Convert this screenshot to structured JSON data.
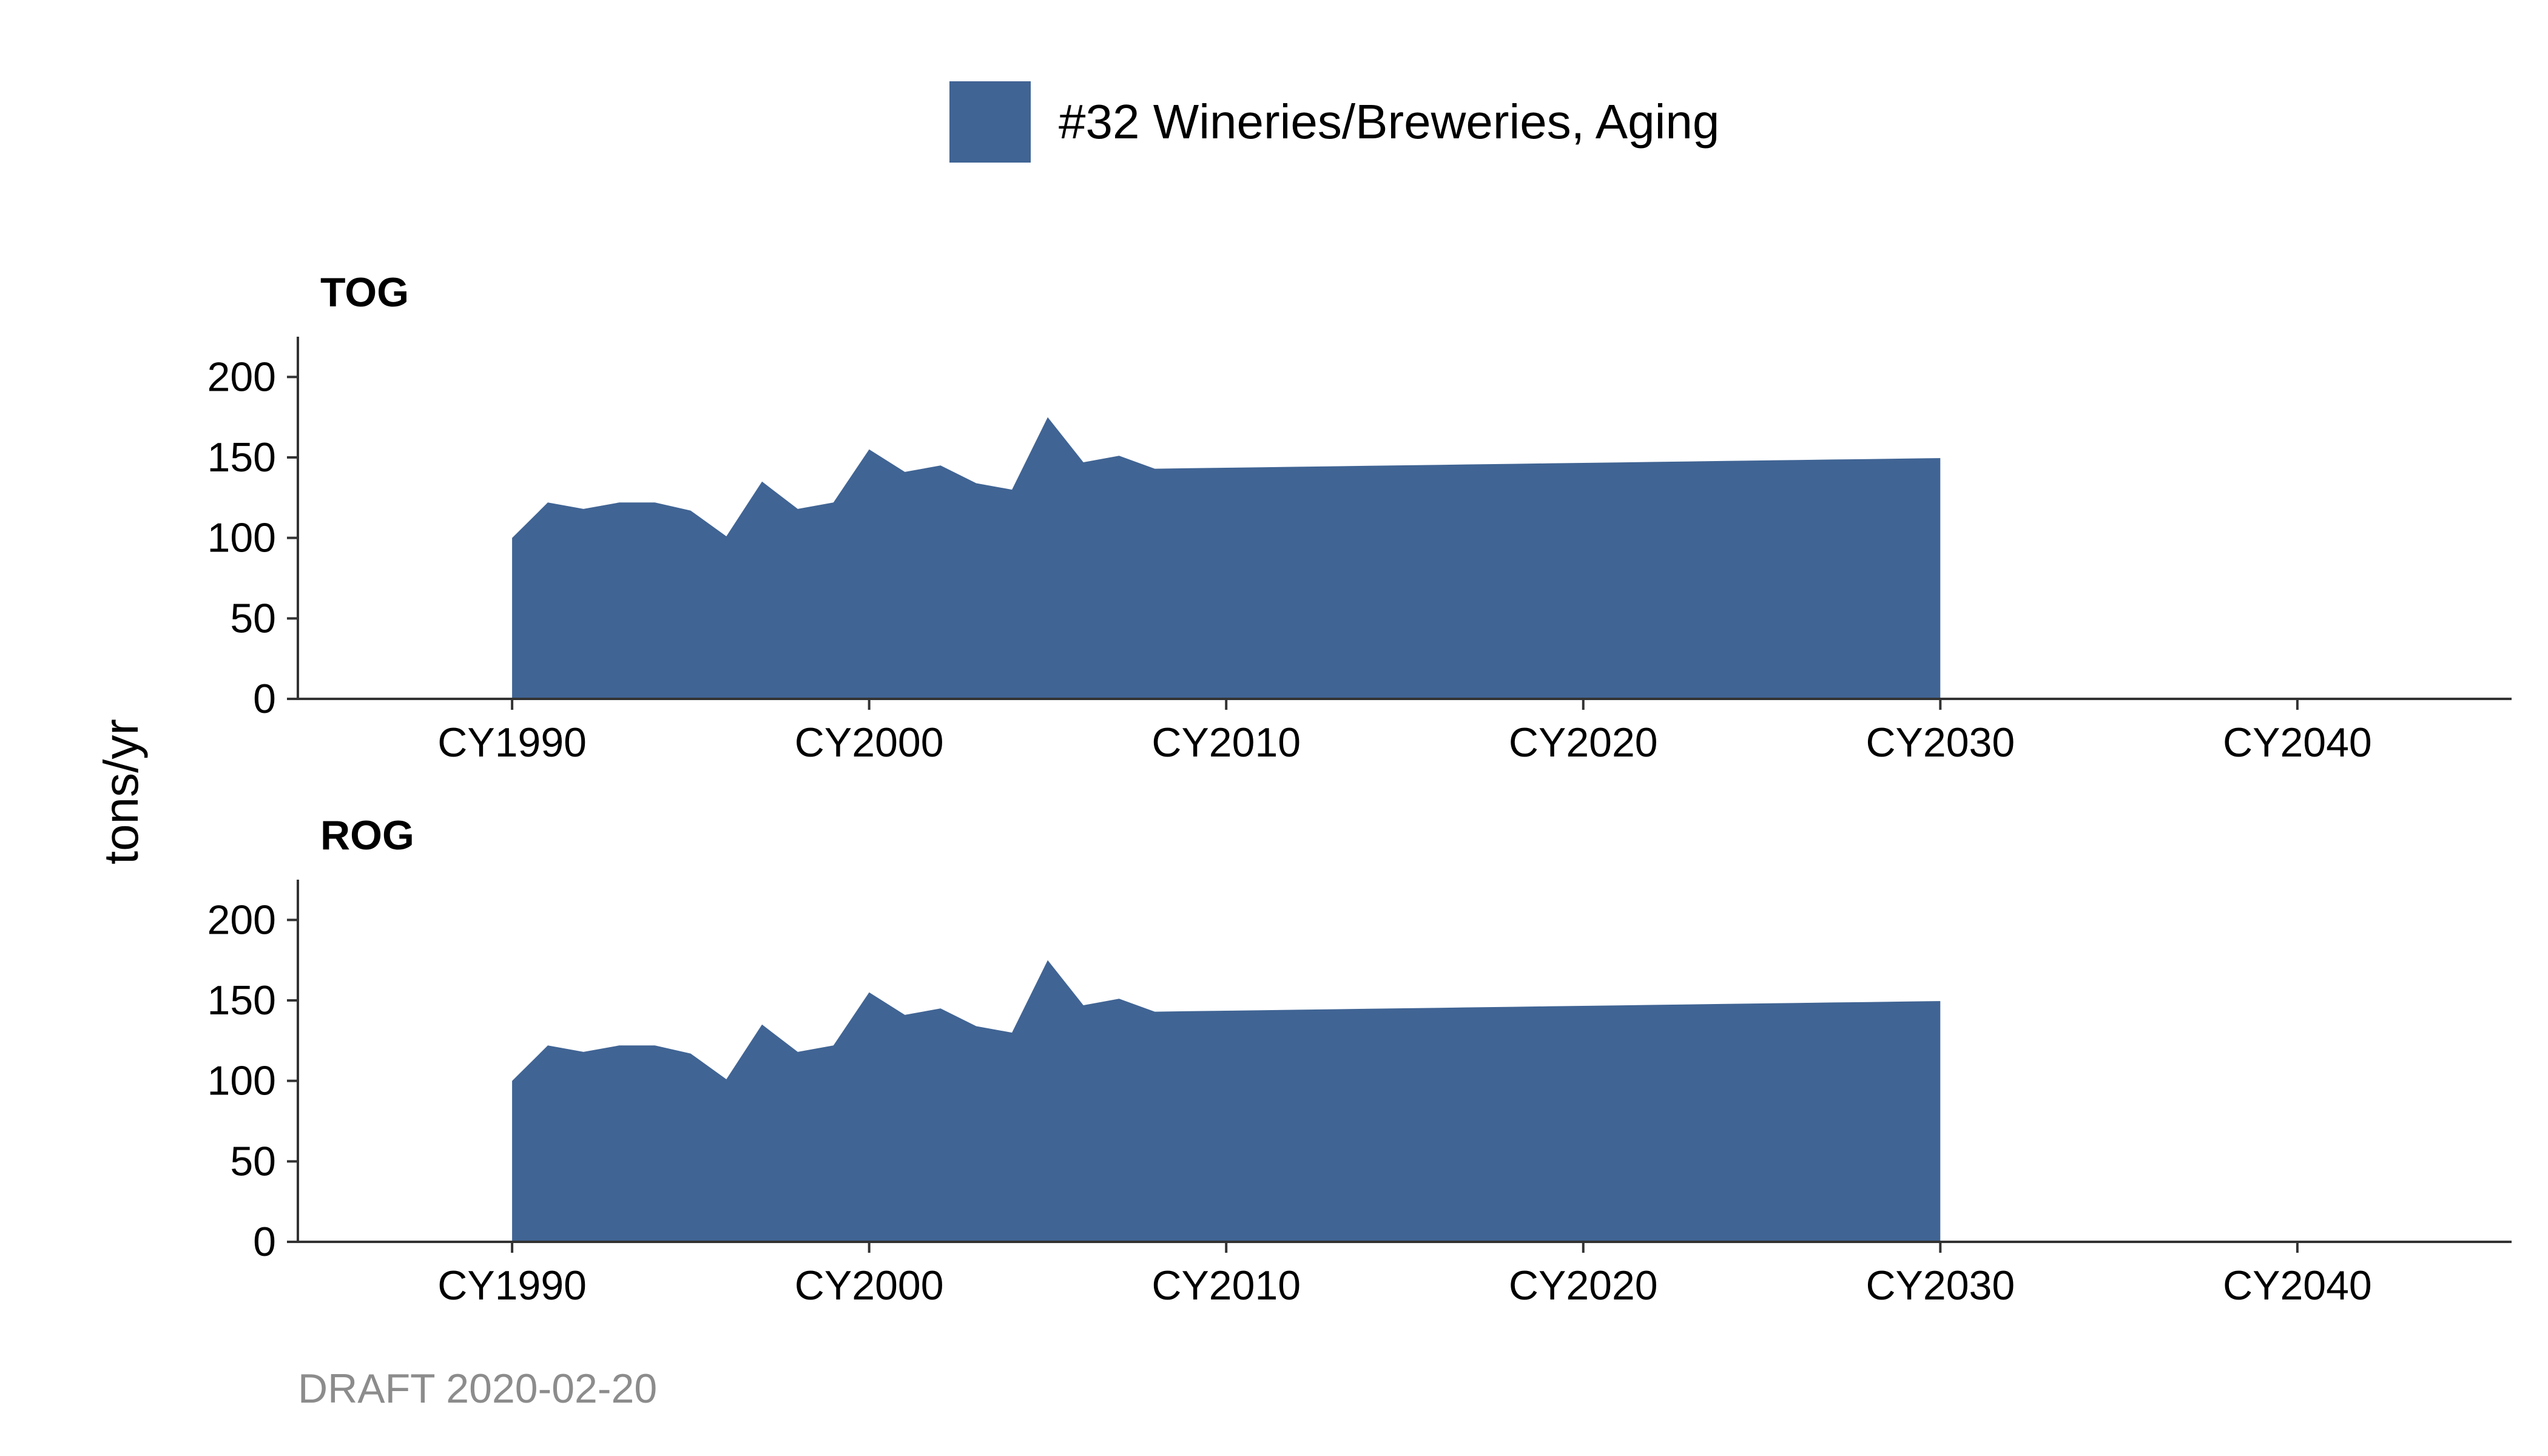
{
  "chart_data": {
    "type": "area",
    "legend": {
      "position": "top-center",
      "entries": [
        {
          "label": "#32 Wineries/Breweries, Aging",
          "color": "#406494"
        }
      ]
    },
    "ylabel": "tons/yr",
    "footer": "DRAFT 2020-02-20",
    "xlim": [
      1984,
      2046
    ],
    "ylim": [
      0,
      225
    ],
    "x_ticks": [
      1990,
      2000,
      2010,
      2020,
      2030,
      2040
    ],
    "x_tick_labels": [
      "CY1990",
      "CY2000",
      "CY2010",
      "CY2020",
      "CY2030",
      "CY2040"
    ],
    "y_ticks": [
      0,
      50,
      100,
      150,
      200
    ],
    "y_tick_labels": [
      "0",
      "50",
      "100",
      "150",
      "200"
    ],
    "grid": false,
    "x": [
      1990,
      1991,
      1992,
      1993,
      1994,
      1995,
      1996,
      1997,
      1998,
      1999,
      2000,
      2001,
      2002,
      2003,
      2004,
      2005,
      2006,
      2007,
      2008,
      2009,
      2010,
      2011,
      2012,
      2013,
      2014,
      2015,
      2016,
      2017,
      2018,
      2019,
      2020,
      2021,
      2022,
      2023,
      2024,
      2025,
      2026,
      2027,
      2028,
      2029,
      2030
    ],
    "panels": [
      {
        "title": "TOG",
        "series": [
          {
            "name": "#32 Wineries/Breweries, Aging",
            "color": "#406494",
            "values": [
              100,
              122,
              118,
              122,
              122,
              117,
              101,
              135,
              118,
              122,
              155,
              141,
              145,
              134,
              130,
              175,
              147,
              151,
              143,
              143.3,
              143.6,
              143.9,
              144.2,
              144.5,
              144.8,
              145.1,
              145.4,
              145.7,
              146,
              146.3,
              146.6,
              146.9,
              147.2,
              147.5,
              147.8,
              148.1,
              148.4,
              148.7,
              149,
              149.3,
              149.6
            ]
          }
        ]
      },
      {
        "title": "ROG",
        "series": [
          {
            "name": "#32 Wineries/Breweries, Aging",
            "color": "#406494",
            "values": [
              100,
              122,
              118,
              122,
              122,
              117,
              101,
              135,
              118,
              122,
              155,
              141,
              145,
              134,
              130,
              175,
              147,
              151,
              143,
              143.3,
              143.6,
              143.9,
              144.2,
              144.5,
              144.8,
              145.1,
              145.4,
              145.7,
              146,
              146.3,
              146.6,
              146.9,
              147.2,
              147.5,
              147.8,
              148.1,
              148.4,
              148.7,
              149,
              149.3,
              149.6
            ]
          }
        ]
      }
    ]
  }
}
